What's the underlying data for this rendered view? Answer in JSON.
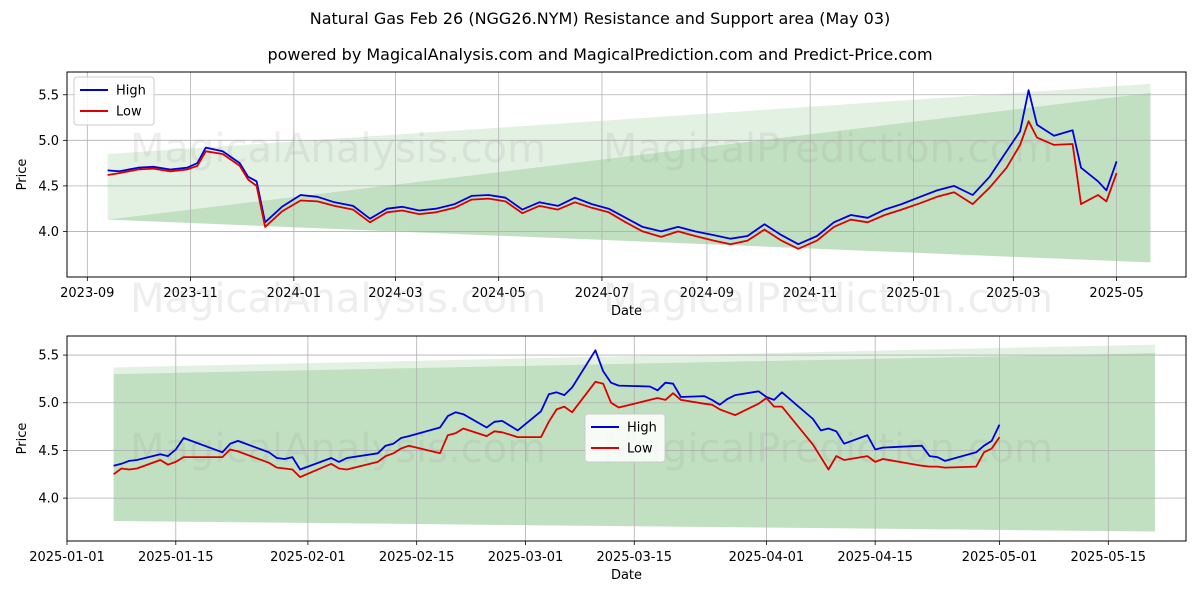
{
  "header": {
    "title": "Natural Gas Feb 26 (NGG26.NYM) Resistance and Support area (May 03)",
    "subtitle": "powered by MagicalAnalysis.com and MagicalPrediction.com and Predict-Price.com"
  },
  "watermarks": [
    "MagicalAnalysis.com",
    "MagicalPrediction.com"
  ],
  "colors": {
    "high": "#0000dd",
    "low": "#dd0000",
    "band": "#8fc98f",
    "grid": "#b0b0b0"
  },
  "chart_data": [
    {
      "type": "line",
      "xlabel": "Date",
      "ylabel": "Price",
      "legend": "upper-left",
      "grid": true,
      "xlim": [
        "2023-08-20",
        "2025-06-11"
      ],
      "ylim": [
        3.5,
        5.75
      ],
      "x_ticks": [
        "2023-09",
        "2023-11",
        "2024-01",
        "2024-03",
        "2024-05",
        "2024-07",
        "2024-09",
        "2024-11",
        "2025-01",
        "2025-03",
        "2025-05"
      ],
      "y_ticks": [
        "4.0",
        "4.5",
        "5.0",
        "5.5"
      ],
      "bands": [
        {
          "x": [
            "2023-09-13",
            "2025-05-21"
          ],
          "upper": [
            4.85,
            5.62
          ],
          "lower": [
            4.13,
            3.66
          ],
          "opacity": 0.25
        },
        {
          "x": [
            "2023-09-13",
            "2025-05-21"
          ],
          "upper": [
            4.13,
            5.52
          ],
          "lower": [
            4.13,
            3.66
          ],
          "opacity": 0.4
        }
      ],
      "series": [
        {
          "name": "High",
          "x": [
            "2023-09-13",
            "2023-09-20",
            "2023-10-01",
            "2023-10-10",
            "2023-10-20",
            "2023-10-30",
            "2023-11-05",
            "2023-11-10",
            "2023-11-20",
            "2023-11-30",
            "2023-12-05",
            "2023-12-10",
            "2023-12-15",
            "2023-12-25",
            "2024-01-05",
            "2024-01-15",
            "2024-01-25",
            "2024-02-05",
            "2024-02-15",
            "2024-02-25",
            "2024-03-05",
            "2024-03-15",
            "2024-03-25",
            "2024-04-05",
            "2024-04-15",
            "2024-04-25",
            "2024-05-05",
            "2024-05-15",
            "2024-05-25",
            "2024-06-05",
            "2024-06-15",
            "2024-06-25",
            "2024-07-05",
            "2024-07-15",
            "2024-07-25",
            "2024-08-05",
            "2024-08-15",
            "2024-08-25",
            "2024-09-05",
            "2024-09-15",
            "2024-09-25",
            "2024-10-05",
            "2024-10-15",
            "2024-10-25",
            "2024-11-05",
            "2024-11-15",
            "2024-11-25",
            "2024-12-05",
            "2024-12-15",
            "2024-12-25",
            "2025-01-05",
            "2025-01-15",
            "2025-01-25",
            "2025-02-05",
            "2025-02-15",
            "2025-02-25",
            "2025-03-05",
            "2025-03-10",
            "2025-03-15",
            "2025-03-25",
            "2025-04-05",
            "2025-04-10",
            "2025-04-20",
            "2025-04-25",
            "2025-05-01"
          ],
          "y": [
            4.67,
            4.66,
            4.7,
            4.71,
            4.68,
            4.7,
            4.75,
            4.92,
            4.88,
            4.75,
            4.6,
            4.55,
            4.1,
            4.27,
            4.4,
            4.38,
            4.32,
            4.28,
            4.14,
            4.25,
            4.27,
            4.23,
            4.25,
            4.3,
            4.39,
            4.4,
            4.37,
            4.24,
            4.32,
            4.28,
            4.37,
            4.3,
            4.25,
            4.15,
            4.05,
            4.0,
            4.05,
            4.0,
            3.96,
            3.92,
            3.95,
            4.08,
            3.96,
            3.86,
            3.95,
            4.1,
            4.18,
            4.15,
            4.24,
            4.3,
            4.38,
            4.45,
            4.5,
            4.4,
            4.6,
            4.88,
            5.1,
            5.55,
            5.17,
            5.05,
            5.11,
            4.7,
            4.55,
            4.45,
            4.77
          ]
        },
        {
          "name": "Low",
          "x": [
            "2023-09-13",
            "2023-09-20",
            "2023-10-01",
            "2023-10-10",
            "2023-10-20",
            "2023-10-30",
            "2023-11-05",
            "2023-11-10",
            "2023-11-20",
            "2023-11-30",
            "2023-12-05",
            "2023-12-10",
            "2023-12-15",
            "2023-12-25",
            "2024-01-05",
            "2024-01-15",
            "2024-01-25",
            "2024-02-05",
            "2024-02-15",
            "2024-02-25",
            "2024-03-05",
            "2024-03-15",
            "2024-03-25",
            "2024-04-05",
            "2024-04-15",
            "2024-04-25",
            "2024-05-05",
            "2024-05-15",
            "2024-05-25",
            "2024-06-05",
            "2024-06-15",
            "2024-06-25",
            "2024-07-05",
            "2024-07-15",
            "2024-07-25",
            "2024-08-05",
            "2024-08-15",
            "2024-08-25",
            "2024-09-05",
            "2024-09-15",
            "2024-09-25",
            "2024-10-05",
            "2024-10-15",
            "2024-10-25",
            "2024-11-05",
            "2024-11-15",
            "2024-11-25",
            "2024-12-05",
            "2024-12-15",
            "2024-12-25",
            "2025-01-05",
            "2025-01-15",
            "2025-01-25",
            "2025-02-05",
            "2025-02-15",
            "2025-02-25",
            "2025-03-05",
            "2025-03-10",
            "2025-03-15",
            "2025-03-25",
            "2025-04-05",
            "2025-04-10",
            "2025-04-20",
            "2025-04-25",
            "2025-05-01"
          ],
          "y": [
            4.62,
            4.64,
            4.68,
            4.69,
            4.66,
            4.68,
            4.72,
            4.88,
            4.85,
            4.72,
            4.57,
            4.5,
            4.05,
            4.22,
            4.34,
            4.33,
            4.28,
            4.24,
            4.1,
            4.21,
            4.23,
            4.19,
            4.21,
            4.26,
            4.35,
            4.36,
            4.33,
            4.2,
            4.28,
            4.24,
            4.32,
            4.26,
            4.21,
            4.1,
            4.0,
            3.94,
            4.0,
            3.95,
            3.9,
            3.86,
            3.9,
            4.02,
            3.9,
            3.81,
            3.9,
            4.05,
            4.13,
            4.1,
            4.18,
            4.24,
            4.31,
            4.38,
            4.43,
            4.3,
            4.48,
            4.7,
            4.95,
            5.21,
            5.03,
            4.95,
            4.96,
            4.3,
            4.4,
            4.33,
            4.64
          ]
        }
      ]
    },
    {
      "type": "line",
      "xlabel": "Date",
      "ylabel": "Price",
      "legend": "center",
      "grid": true,
      "xlim": [
        "2025-01-01",
        "2025-05-25"
      ],
      "ylim": [
        3.55,
        5.7
      ],
      "x_ticks": [
        "2025-01-01",
        "2025-01-15",
        "2025-02-01",
        "2025-02-15",
        "2025-03-01",
        "2025-03-15",
        "2025-04-01",
        "2025-04-15",
        "2025-05-01",
        "2025-05-15"
      ],
      "y_ticks": [
        "4.0",
        "4.5",
        "5.0",
        "5.5"
      ],
      "bands": [
        {
          "x": [
            "2025-01-07",
            "2025-05-21"
          ],
          "upper": [
            5.37,
            5.61
          ],
          "lower": [
            3.76,
            3.65
          ],
          "opacity": 0.25
        },
        {
          "x": [
            "2025-01-07",
            "2025-05-21"
          ],
          "upper": [
            5.3,
            5.52
          ],
          "lower": [
            3.76,
            3.65
          ],
          "opacity": 0.4
        }
      ],
      "series": [
        {
          "name": "High",
          "x": [
            "2025-01-07",
            "2025-01-08",
            "2025-01-09",
            "2025-01-10",
            "2025-01-13",
            "2025-01-14",
            "2025-01-15",
            "2025-01-16",
            "2025-01-21",
            "2025-01-22",
            "2025-01-23",
            "2025-01-27",
            "2025-01-28",
            "2025-01-29",
            "2025-01-30",
            "2025-01-31",
            "2025-02-04",
            "2025-02-05",
            "2025-02-06",
            "2025-02-10",
            "2025-02-11",
            "2025-02-12",
            "2025-02-13",
            "2025-02-14",
            "2025-02-18",
            "2025-02-19",
            "2025-02-20",
            "2025-02-21",
            "2025-02-24",
            "2025-02-25",
            "2025-02-26",
            "2025-02-28",
            "2025-03-03",
            "2025-03-04",
            "2025-03-05",
            "2025-03-06",
            "2025-03-07",
            "2025-03-10",
            "2025-03-11",
            "2025-03-12",
            "2025-03-13",
            "2025-03-17",
            "2025-03-18",
            "2025-03-19",
            "2025-03-20",
            "2025-03-21",
            "2025-03-24",
            "2025-03-25",
            "2025-03-26",
            "2025-03-27",
            "2025-03-28",
            "2025-03-31",
            "2025-04-01",
            "2025-04-02",
            "2025-04-03",
            "2025-04-07",
            "2025-04-08",
            "2025-04-09",
            "2025-04-10",
            "2025-04-11",
            "2025-04-14",
            "2025-04-15",
            "2025-04-16",
            "2025-04-21",
            "2025-04-22",
            "2025-04-23",
            "2025-04-24",
            "2025-04-28",
            "2025-04-29",
            "2025-04-30",
            "2025-05-01"
          ],
          "y": [
            4.34,
            4.36,
            4.39,
            4.4,
            4.46,
            4.44,
            4.51,
            4.63,
            4.48,
            4.57,
            4.6,
            4.48,
            4.42,
            4.41,
            4.43,
            4.3,
            4.42,
            4.38,
            4.42,
            4.47,
            4.55,
            4.57,
            4.63,
            4.65,
            4.74,
            4.86,
            4.9,
            4.88,
            4.74,
            4.8,
            4.81,
            4.71,
            4.91,
            5.09,
            5.11,
            5.08,
            5.16,
            5.55,
            5.33,
            5.21,
            5.18,
            5.17,
            5.13,
            5.21,
            5.2,
            5.06,
            5.07,
            5.03,
            4.98,
            5.04,
            5.08,
            5.12,
            5.06,
            5.03,
            5.11,
            4.83,
            4.71,
            4.73,
            4.7,
            4.57,
            4.66,
            4.51,
            4.53,
            4.55,
            4.44,
            4.43,
            4.39,
            4.48,
            4.55,
            4.6,
            4.77
          ]
        },
        {
          "name": "Low",
          "x": [
            "2025-01-07",
            "2025-01-08",
            "2025-01-09",
            "2025-01-10",
            "2025-01-13",
            "2025-01-14",
            "2025-01-15",
            "2025-01-16",
            "2025-01-21",
            "2025-01-22",
            "2025-01-23",
            "2025-01-27",
            "2025-01-28",
            "2025-01-29",
            "2025-01-30",
            "2025-01-31",
            "2025-02-04",
            "2025-02-05",
            "2025-02-06",
            "2025-02-10",
            "2025-02-11",
            "2025-02-12",
            "2025-02-13",
            "2025-02-14",
            "2025-02-18",
            "2025-02-19",
            "2025-02-20",
            "2025-02-21",
            "2025-02-24",
            "2025-02-25",
            "2025-02-26",
            "2025-02-28",
            "2025-03-03",
            "2025-03-04",
            "2025-03-05",
            "2025-03-06",
            "2025-03-07",
            "2025-03-10",
            "2025-03-11",
            "2025-03-12",
            "2025-03-13",
            "2025-03-17",
            "2025-03-18",
            "2025-03-19",
            "2025-03-20",
            "2025-03-21",
            "2025-03-24",
            "2025-03-25",
            "2025-03-26",
            "2025-03-27",
            "2025-03-28",
            "2025-03-31",
            "2025-04-01",
            "2025-04-02",
            "2025-04-03",
            "2025-04-07",
            "2025-04-08",
            "2025-04-09",
            "2025-04-10",
            "2025-04-11",
            "2025-04-14",
            "2025-04-15",
            "2025-04-16",
            "2025-04-21",
            "2025-04-22",
            "2025-04-23",
            "2025-04-24",
            "2025-04-28",
            "2025-04-29",
            "2025-04-30",
            "2025-05-01"
          ],
          "y": [
            4.25,
            4.31,
            4.3,
            4.31,
            4.4,
            4.35,
            4.38,
            4.43,
            4.43,
            4.51,
            4.49,
            4.37,
            4.32,
            4.31,
            4.3,
            4.22,
            4.36,
            4.31,
            4.3,
            4.38,
            4.44,
            4.47,
            4.52,
            4.55,
            4.47,
            4.66,
            4.68,
            4.73,
            4.65,
            4.7,
            4.69,
            4.64,
            4.64,
            4.8,
            4.93,
            4.96,
            4.9,
            5.22,
            5.2,
            5.0,
            4.95,
            5.03,
            5.05,
            5.03,
            5.1,
            5.03,
            4.99,
            4.98,
            4.93,
            4.9,
            4.87,
            4.99,
            5.05,
            4.96,
            4.96,
            4.56,
            4.43,
            4.3,
            4.44,
            4.4,
            4.44,
            4.38,
            4.41,
            4.34,
            4.33,
            4.33,
            4.32,
            4.33,
            4.48,
            4.52,
            4.64
          ]
        }
      ]
    }
  ]
}
